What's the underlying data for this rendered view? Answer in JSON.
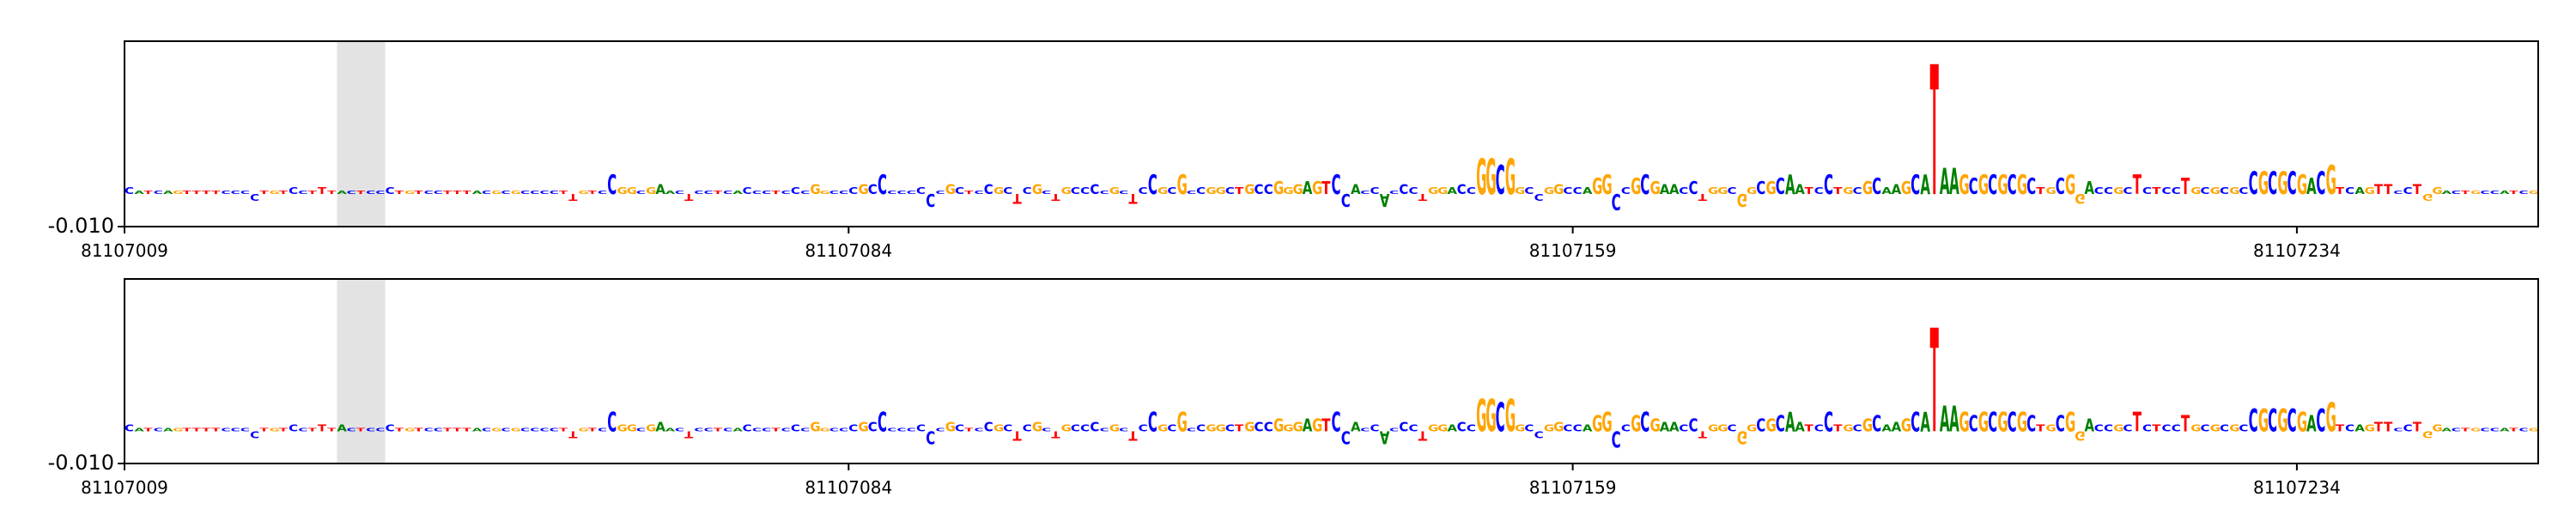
{
  "chart_data": [
    {
      "type": "logo",
      "xlim": [
        81107009,
        81107259
      ],
      "xticks": [
        81107009,
        81107084,
        81107159,
        81107234
      ],
      "ylim": [
        -0.01,
        0.047
      ],
      "yticks": [
        {
          "value": -0.01,
          "label": "-0.010"
        }
      ],
      "highlight": [
        81107031,
        81107036
      ],
      "colors": {
        "A": "#008000",
        "C": "#0000ff",
        "G": "#ffa500",
        "T": "#ff0000"
      },
      "bases": [
        "C",
        "A",
        "T",
        "C",
        "A",
        "G",
        "T",
        "T",
        "T",
        "T",
        "C",
        "C",
        "C",
        "C",
        "T",
        "G",
        "T",
        "C",
        "C",
        "T",
        "T",
        "T",
        "A",
        "C",
        "T",
        "C",
        "C",
        "C",
        "T",
        "G",
        "T",
        "C",
        "C",
        "T",
        "T",
        "T",
        "A",
        "C",
        "G",
        "C",
        "G",
        "C",
        "C",
        "C",
        "C",
        "T",
        "T",
        "G",
        "T",
        "C",
        "C",
        "G",
        "G",
        "C",
        "G",
        "A",
        "A",
        "C",
        "T",
        "C",
        "C",
        "T",
        "C",
        "A",
        "C",
        "C",
        "C",
        "T",
        "C",
        "C",
        "C",
        "G",
        "G",
        "C",
        "C",
        "C",
        "G",
        "C",
        "C",
        "C",
        "C",
        "C",
        "C",
        "C",
        "C",
        "G",
        "C",
        "T",
        "C",
        "C",
        "G",
        "C",
        "T",
        "C",
        "G",
        "C",
        "T",
        "G",
        "C",
        "C",
        "C",
        "C",
        "G",
        "C",
        "T",
        "C",
        "C",
        "G",
        "C",
        "G",
        "C",
        "C",
        "G",
        "G",
        "C",
        "T",
        "G",
        "C",
        "C",
        "G",
        "G",
        "G",
        "A",
        "G",
        "T",
        "C",
        "C",
        "A",
        "C",
        "C",
        "A",
        "C",
        "C",
        "C",
        "T",
        "G",
        "G",
        "A",
        "C",
        "C",
        "G",
        "G",
        "C",
        "G",
        "G",
        "C",
        "C",
        "G",
        "G",
        "C",
        "C",
        "A",
        "G",
        "G",
        "C",
        "C",
        "G",
        "C",
        "G",
        "A",
        "A",
        "C",
        "C",
        "T",
        "G",
        "G",
        "C",
        "G",
        "G",
        "C",
        "G",
        "C",
        "A",
        "A",
        "T",
        "C",
        "C",
        "T",
        "G",
        "C",
        "G",
        "C",
        "A",
        "A",
        "G",
        "C",
        "A",
        "T",
        "A",
        "A",
        "G",
        "C",
        "G",
        "C",
        "G",
        "C",
        "G",
        "C",
        "T",
        "G",
        "C",
        "G",
        "G",
        "A",
        "C",
        "C",
        "G",
        "C",
        "T",
        "C",
        "T",
        "C",
        "C",
        "T",
        "G",
        "C",
        "G",
        "C",
        "G",
        "C",
        "C",
        "G",
        "C",
        "G",
        "C",
        "G",
        "A",
        "C",
        "G",
        "T",
        "C",
        "A",
        "G",
        "T",
        "T",
        "C",
        "C",
        "T",
        "G",
        "G",
        "A",
        "C",
        "T",
        "G",
        "C",
        "C",
        "A",
        "T",
        "C",
        "G"
      ],
      "values": [
        0.002,
        0.001,
        0.001,
        0.001,
        0.001,
        0.001,
        0.001,
        0.001,
        0.001,
        0.001,
        0.001,
        0.001,
        0.001,
        -0.002,
        0.001,
        0.001,
        0.001,
        0.002,
        0.001,
        0.001,
        0.002,
        0.001,
        0.001,
        0.001,
        0.001,
        0.001,
        0.001,
        0.002,
        0.001,
        0.001,
        0.001,
        0.001,
        0.001,
        0.001,
        0.001,
        0.001,
        0.001,
        0.001,
        0.001,
        0.001,
        0.001,
        0.001,
        0.001,
        0.001,
        0.001,
        0.001,
        -0.002,
        0.001,
        0.001,
        0.001,
        0.006,
        0.002,
        0.002,
        0.001,
        0.002,
        0.003,
        0.001,
        0.001,
        -0.002,
        0.001,
        0.001,
        0.001,
        0.001,
        0.001,
        0.002,
        0.001,
        0.001,
        0.001,
        0.001,
        0.002,
        0.001,
        0.003,
        0.001,
        0.001,
        0.001,
        0.002,
        0.003,
        0.003,
        0.006,
        0.001,
        0.001,
        0.001,
        0.002,
        -0.004,
        0.001,
        0.003,
        0.002,
        0.001,
        0.001,
        0.003,
        0.002,
        0.002,
        -0.003,
        0.002,
        0.003,
        0.001,
        -0.002,
        0.002,
        0.002,
        0.002,
        0.003,
        0.001,
        0.002,
        0.001,
        -0.003,
        0.002,
        0.006,
        0.002,
        0.002,
        0.006,
        0.001,
        0.002,
        0.002,
        0.002,
        0.002,
        0.002,
        0.003,
        0.003,
        0.003,
        0.004,
        0.002,
        0.003,
        0.004,
        0.004,
        0.004,
        0.006,
        -0.004,
        0.003,
        0.001,
        0.002,
        -0.004,
        0.001,
        0.003,
        0.002,
        -0.002,
        0.002,
        0.002,
        0.002,
        0.003,
        0.002,
        0.011,
        0.011,
        0.009,
        0.011,
        0.002,
        0.002,
        -0.002,
        0.002,
        0.003,
        0.002,
        0.002,
        0.002,
        0.005,
        0.006,
        -0.005,
        0.002,
        0.005,
        0.006,
        0.004,
        0.003,
        0.003,
        0.002,
        0.004,
        -0.002,
        0.002,
        0.002,
        0.002,
        -0.004,
        0.002,
        0.004,
        0.004,
        0.005,
        0.006,
        0.003,
        0.002,
        0.002,
        0.006,
        0.002,
        0.002,
        0.002,
        0.004,
        0.005,
        0.002,
        0.003,
        0.004,
        0.006,
        0.006,
        0.04,
        0.008,
        0.008,
        0.006,
        0.005,
        0.006,
        0.006,
        0.006,
        0.006,
        0.006,
        0.005,
        0.002,
        0.002,
        0.005,
        0.006,
        -0.003,
        0.004,
        0.002,
        0.002,
        0.002,
        0.002,
        0.006,
        0.002,
        0.002,
        0.002,
        0.002,
        0.005,
        0.002,
        0.002,
        0.002,
        0.002,
        0.002,
        0.002,
        0.007,
        0.007,
        0.007,
        0.007,
        0.007,
        0.006,
        0.005,
        0.007,
        0.009,
        0.002,
        0.002,
        0.002,
        0.002,
        0.003,
        0.003,
        0.001,
        0.002,
        0.003,
        -0.002,
        0.002,
        0.001,
        0.001,
        0.001,
        0.001,
        0.001,
        0.001,
        0.001,
        0.001,
        0.001,
        0.001
      ]
    },
    {
      "type": "logo",
      "xlim": [
        81107009,
        81107259
      ],
      "xticks": [
        81107009,
        81107084,
        81107159,
        81107234
      ],
      "ylim": [
        -0.01,
        0.047
      ],
      "yticks": [
        {
          "value": -0.01,
          "label": "-0.010"
        }
      ],
      "highlight": [
        81107031,
        81107036
      ],
      "colors": {
        "A": "#008000",
        "C": "#0000ff",
        "G": "#ffa500",
        "T": "#ff0000"
      },
      "bases": [
        "C",
        "A",
        "T",
        "C",
        "A",
        "G",
        "T",
        "T",
        "T",
        "T",
        "C",
        "C",
        "C",
        "C",
        "T",
        "G",
        "T",
        "C",
        "C",
        "T",
        "T",
        "T",
        "A",
        "C",
        "T",
        "C",
        "C",
        "C",
        "T",
        "G",
        "T",
        "C",
        "C",
        "T",
        "T",
        "T",
        "A",
        "C",
        "G",
        "C",
        "G",
        "C",
        "C",
        "C",
        "C",
        "T",
        "T",
        "G",
        "T",
        "C",
        "C",
        "G",
        "G",
        "C",
        "G",
        "A",
        "A",
        "C",
        "T",
        "C",
        "C",
        "T",
        "C",
        "A",
        "C",
        "C",
        "C",
        "T",
        "C",
        "C",
        "C",
        "G",
        "G",
        "C",
        "C",
        "C",
        "G",
        "C",
        "C",
        "C",
        "C",
        "C",
        "C",
        "C",
        "C",
        "G",
        "C",
        "T",
        "C",
        "C",
        "G",
        "C",
        "T",
        "C",
        "G",
        "C",
        "T",
        "G",
        "C",
        "C",
        "C",
        "C",
        "G",
        "C",
        "T",
        "C",
        "C",
        "G",
        "C",
        "G",
        "C",
        "C",
        "G",
        "G",
        "C",
        "T",
        "G",
        "C",
        "C",
        "G",
        "G",
        "G",
        "A",
        "G",
        "T",
        "C",
        "C",
        "A",
        "C",
        "C",
        "A",
        "C",
        "C",
        "C",
        "T",
        "G",
        "G",
        "A",
        "C",
        "C",
        "G",
        "G",
        "C",
        "G",
        "G",
        "C",
        "C",
        "G",
        "G",
        "C",
        "C",
        "A",
        "G",
        "G",
        "C",
        "C",
        "G",
        "C",
        "G",
        "A",
        "A",
        "C",
        "C",
        "T",
        "G",
        "G",
        "C",
        "G",
        "G",
        "C",
        "G",
        "C",
        "A",
        "A",
        "T",
        "C",
        "C",
        "T",
        "G",
        "C",
        "G",
        "C",
        "A",
        "A",
        "G",
        "C",
        "A",
        "T",
        "A",
        "A",
        "G",
        "C",
        "G",
        "C",
        "G",
        "C",
        "G",
        "C",
        "T",
        "G",
        "C",
        "G",
        "G",
        "A",
        "C",
        "C",
        "G",
        "C",
        "T",
        "C",
        "T",
        "C",
        "C",
        "T",
        "G",
        "C",
        "G",
        "C",
        "G",
        "C",
        "C",
        "G",
        "C",
        "G",
        "C",
        "G",
        "A",
        "C",
        "G",
        "T",
        "C",
        "A",
        "G",
        "T",
        "T",
        "C",
        "C",
        "T",
        "G",
        "G",
        "A",
        "C",
        "T",
        "G",
        "C",
        "C",
        "A",
        "T",
        "C",
        "G"
      ],
      "values": [
        0.002,
        0.001,
        0.001,
        0.001,
        0.001,
        0.001,
        0.001,
        0.001,
        0.001,
        0.001,
        0.001,
        0.001,
        0.001,
        -0.002,
        0.001,
        0.001,
        0.001,
        0.002,
        0.001,
        0.001,
        0.002,
        0.001,
        0.002,
        0.001,
        0.001,
        0.001,
        0.001,
        0.002,
        0.001,
        0.001,
        0.001,
        0.001,
        0.001,
        0.001,
        0.001,
        0.001,
        0.001,
        0.001,
        0.001,
        0.001,
        0.001,
        0.001,
        0.001,
        0.001,
        0.001,
        0.001,
        -0.002,
        0.001,
        0.001,
        0.001,
        0.006,
        0.002,
        0.002,
        0.001,
        0.002,
        0.003,
        0.001,
        0.001,
        -0.002,
        0.001,
        0.001,
        0.001,
        0.001,
        0.001,
        0.002,
        0.001,
        0.001,
        0.001,
        0.001,
        0.002,
        0.001,
        0.003,
        0.001,
        0.001,
        0.001,
        0.002,
        0.003,
        0.003,
        0.006,
        0.001,
        0.001,
        0.001,
        0.002,
        -0.004,
        0.001,
        0.003,
        0.002,
        0.001,
        0.001,
        0.003,
        0.002,
        0.002,
        -0.003,
        0.002,
        0.003,
        0.001,
        -0.002,
        0.002,
        0.002,
        0.002,
        0.003,
        0.001,
        0.002,
        0.001,
        -0.003,
        0.002,
        0.006,
        0.002,
        0.002,
        0.006,
        0.001,
        0.002,
        0.002,
        0.002,
        0.002,
        0.002,
        0.003,
        0.003,
        0.003,
        0.004,
        0.002,
        0.003,
        0.004,
        0.004,
        0.004,
        0.006,
        -0.004,
        0.003,
        0.001,
        0.002,
        -0.004,
        0.001,
        0.003,
        0.002,
        -0.003,
        0.002,
        0.002,
        0.002,
        0.003,
        0.002,
        0.01,
        0.01,
        0.009,
        0.01,
        0.002,
        0.002,
        -0.002,
        0.002,
        0.003,
        0.002,
        0.002,
        0.002,
        0.005,
        0.006,
        -0.005,
        0.002,
        0.005,
        0.006,
        0.004,
        0.003,
        0.003,
        0.002,
        0.004,
        -0.002,
        0.002,
        0.002,
        0.002,
        -0.004,
        0.002,
        0.004,
        0.004,
        0.005,
        0.006,
        0.003,
        0.002,
        0.002,
        0.006,
        0.002,
        0.002,
        0.002,
        0.004,
        0.005,
        0.002,
        0.003,
        0.004,
        0.006,
        0.006,
        0.032,
        0.008,
        0.008,
        0.006,
        0.005,
        0.006,
        0.006,
        0.006,
        0.006,
        0.006,
        0.005,
        0.002,
        0.002,
        0.005,
        0.006,
        -0.003,
        0.004,
        0.002,
        0.002,
        0.002,
        0.002,
        0.006,
        0.002,
        0.002,
        0.002,
        0.002,
        0.005,
        0.002,
        0.002,
        0.002,
        0.002,
        0.002,
        0.002,
        0.007,
        0.007,
        0.007,
        0.007,
        0.007,
        0.006,
        0.005,
        0.007,
        0.009,
        0.002,
        0.002,
        0.002,
        0.002,
        0.003,
        0.003,
        0.001,
        0.002,
        0.003,
        -0.002,
        0.002,
        0.001,
        0.001,
        0.001,
        0.001,
        0.001,
        0.001,
        0.001,
        0.001,
        0.001,
        0.001
      ]
    }
  ]
}
